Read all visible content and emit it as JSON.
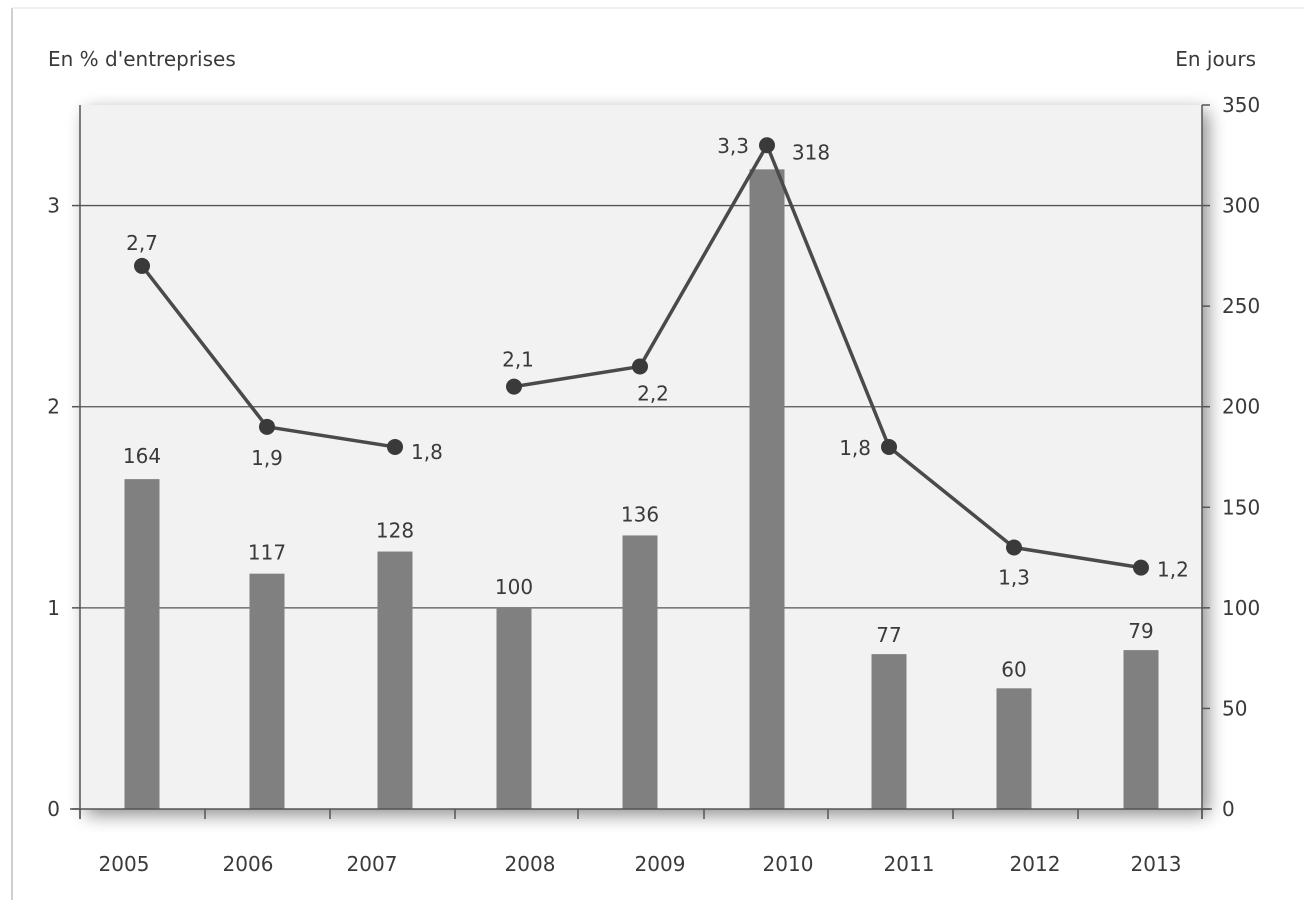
{
  "chart_data": {
    "type": "bar+line",
    "left_axis_label": "En % d'entreprises",
    "right_axis_label": "En jours",
    "categories": [
      "2005",
      "2006",
      "2007",
      "2008",
      "2009",
      "2010",
      "2011",
      "2012",
      "2013"
    ],
    "bars": {
      "axis": "right",
      "values": [
        164,
        117,
        128,
        100,
        136,
        318,
        77,
        60,
        79
      ],
      "labels": [
        "164",
        "117",
        "128",
        "100",
        "136",
        "318",
        "77",
        "60",
        "79"
      ]
    },
    "line": {
      "axis": "left",
      "values": [
        2.7,
        1.9,
        1.8,
        2.1,
        2.2,
        3.3,
        1.8,
        1.3,
        1.2
      ],
      "labels": [
        "2,7",
        "1,9",
        "1,8",
        "2,1",
        "2,2",
        "3,3",
        "1,8",
        "1,3",
        "1,2"
      ],
      "gap_after_category": "2007"
    },
    "left_axis": {
      "range": [
        0,
        3.5
      ],
      "ticks": [
        0,
        1,
        2,
        3
      ],
      "tick_labels": [
        "0",
        "1",
        "2",
        "3"
      ]
    },
    "right_axis": {
      "range": [
        0,
        350
      ],
      "ticks": [
        0,
        50,
        100,
        150,
        200,
        250,
        300,
        350
      ],
      "tick_labels": [
        "0",
        "50",
        "100",
        "150",
        "200",
        "250",
        "300",
        "350"
      ]
    },
    "gridlines": "horizontal at left-axis ticks 1, 2, 3",
    "colors": {
      "bar": "#808080",
      "line": "#4a4a4a",
      "marker": "#3a3a3a",
      "plot_background": "#f2f2f2",
      "gridline": "#555555",
      "text": "#3a3a3a"
    }
  }
}
